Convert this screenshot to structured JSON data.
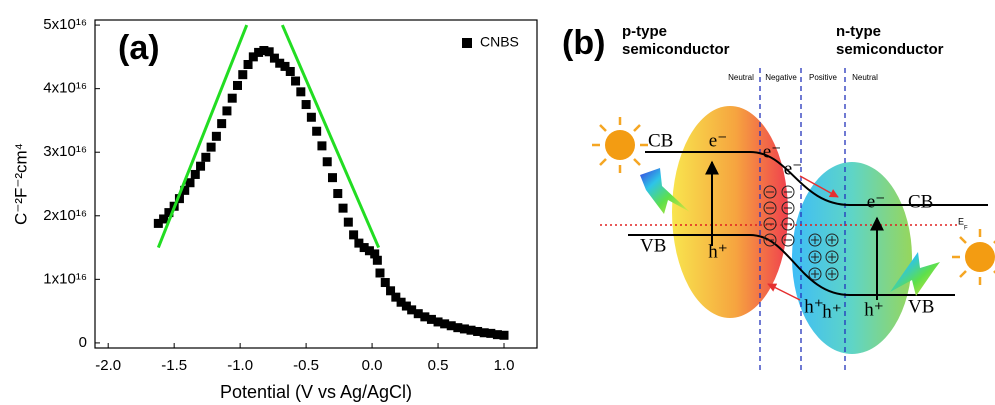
{
  "chart_data": {
    "type": "scatter",
    "panel_label": "(a)",
    "x_label": "Potential (V vs Ag/AgCl)",
    "y_label": "C⁻²F⁻²cm⁴",
    "series": [
      {
        "name": "CNBS",
        "color": "#000000",
        "x": [
          -1.62,
          -1.58,
          -1.54,
          -1.5,
          -1.46,
          -1.42,
          -1.38,
          -1.34,
          -1.3,
          -1.26,
          -1.22,
          -1.18,
          -1.14,
          -1.1,
          -1.06,
          -1.02,
          -0.98,
          -0.94,
          -0.9,
          -0.86,
          -0.82,
          -0.78,
          -0.74,
          -0.7,
          -0.66,
          -0.62,
          -0.58,
          -0.54,
          -0.5,
          -0.46,
          -0.42,
          -0.38,
          -0.34,
          -0.3,
          -0.26,
          -0.22,
          -0.18,
          -0.14,
          -0.1,
          -0.06,
          -0.02,
          0.02,
          0.04,
          0.06,
          0.1,
          0.14,
          0.18,
          0.22,
          0.26,
          0.3,
          0.35,
          0.4,
          0.45,
          0.5,
          0.55,
          0.6,
          0.65,
          0.7,
          0.75,
          0.8,
          0.85,
          0.9,
          0.95,
          1.0
        ],
        "values": [
          1.88e+16,
          1.95e+16,
          2.05e+16,
          2.15e+16,
          2.27e+16,
          2.4e+16,
          2.52e+16,
          2.65e+16,
          2.78e+16,
          2.92e+16,
          3.08e+16,
          3.25e+16,
          3.45e+16,
          3.65e+16,
          3.85e+16,
          4.05e+16,
          4.22e+16,
          4.38e+16,
          4.5e+16,
          4.57e+16,
          4.6e+16,
          4.58e+16,
          4.48e+16,
          4.4e+16,
          4.35e+16,
          4.27e+16,
          4.12e+16,
          3.95e+16,
          3.75e+16,
          3.55e+16,
          3.33e+16,
          3.1e+16,
          2.85e+16,
          2.6e+16,
          2.35e+16,
          2.12e+16,
          1.9e+16,
          1.7e+16,
          1.57e+16,
          1.5e+16,
          1.45e+16,
          1.4e+16,
          1.3e+16,
          1.1e+16,
          9500000000000000.0,
          8200000000000000.0,
          7200000000000000.0,
          6400000000000000.0,
          5800000000000000.0,
          5200000000000000.0,
          4600000000000000.0,
          4100000000000000.0,
          3700000000000000.0,
          3300000000000000.0,
          3000000000000000.0,
          2700000000000000.0,
          2400000000000000.0,
          2200000000000000.0,
          2000000000000000.0,
          1800000000000000.0,
          1600000000000000.0,
          1500000000000000.0,
          1300000000000000.0,
          1200000000000000.0
        ]
      }
    ],
    "fit_lines": [
      {
        "color": "#22dd22",
        "x": [
          -1.62,
          -0.95
        ],
        "values": [
          1.5e+16,
          5e+16
        ]
      },
      {
        "color": "#22dd22",
        "x": [
          -0.68,
          0.05
        ],
        "values": [
          5e+16,
          1.5e+16
        ]
      }
    ],
    "xlim": [
      -2.1,
      1.25
    ],
    "ylim": [
      -800000000000000.0,
      5.08e+16
    ],
    "xticks": [
      {
        "value": -2.0,
        "label": "-2.0"
      },
      {
        "value": -1.5,
        "label": "-1.5"
      },
      {
        "value": -1.0,
        "label": "-1.0"
      },
      {
        "value": -0.5,
        "label": "-0.5"
      },
      {
        "value": 0,
        "label": "0.0"
      },
      {
        "value": 0.5,
        "label": "0.5"
      },
      {
        "value": 1.0,
        "label": "1.0"
      }
    ],
    "yticks": [
      0,
      {
        "value": 1e+16,
        "label": "1x10¹⁶"
      },
      {
        "value": 2e+16,
        "label": "2x10¹⁶"
      },
      {
        "value": 3e+16,
        "label": "3x10¹⁶"
      },
      {
        "value": 4e+16,
        "label": "4x10¹⁶"
      },
      {
        "value": 5e+16,
        "label": "5x10¹⁶"
      }
    ],
    "legend": "top-right"
  },
  "diagram": {
    "panel_label": "(b)",
    "p_label": [
      "p-type",
      "semiconductor"
    ],
    "n_label": [
      "n-type",
      "semiconductor"
    ],
    "regions": [
      "Neutral",
      "Negative",
      "Positive",
      "Neutral"
    ],
    "bands": {
      "left_cb": "CB",
      "left_vb": "VB",
      "right_cb": "CB",
      "right_vb": "VB"
    },
    "fermi_level": {
      "main": "E",
      "sub": "F"
    },
    "electrons": [
      "e⁻",
      "e⁻",
      "e⁻",
      "e⁻"
    ],
    "holes": [
      "h⁺",
      "h⁺",
      "h⁺",
      "h⁺"
    ]
  }
}
